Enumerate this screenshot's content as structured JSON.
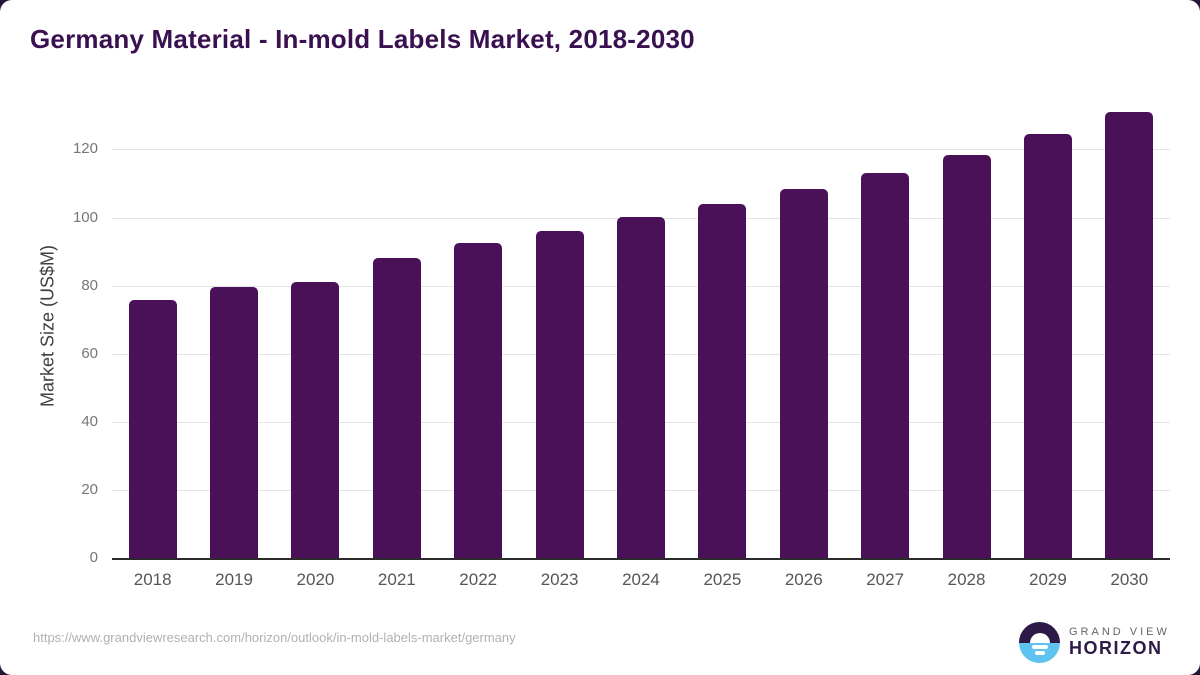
{
  "chart_data": {
    "type": "bar",
    "title": "Germany Material - In-mold Labels Market, 2018-2030",
    "xlabel": "",
    "ylabel": "Market Size (US$M)",
    "categories": [
      "2018",
      "2019",
      "2020",
      "2021",
      "2022",
      "2023",
      "2024",
      "2025",
      "2026",
      "2027",
      "2028",
      "2029",
      "2030"
    ],
    "values": [
      75.9,
      79.6,
      81.2,
      88.0,
      92.4,
      96.2,
      100.3,
      104.1,
      108.5,
      113.1,
      118.4,
      124.6,
      131.0
    ],
    "yticks": [
      0,
      20,
      40,
      60,
      80,
      100,
      120
    ],
    "ylim": [
      0,
      136
    ],
    "grid": "horizontal",
    "legend": "none"
  },
  "theme": {
    "title_color": "#3a1150",
    "bar_color": "#4a1158",
    "grid_color": "#e4e4e4",
    "axis_line_color": "#2b2b2b",
    "tick_label_color": "#767676",
    "x_label_color": "#565656",
    "url_color": "#b1b1b1",
    "logo_purple": "#2e1a47",
    "logo_blue": "#5ec3ef",
    "logo_gray": "#63636f",
    "corner_bg": "#241535"
  },
  "footer": {
    "source_url": "https://www.grandviewresearch.com/horizon/outlook/in-mold-labels-market/germany",
    "logo": {
      "line1": "GRAND VIEW",
      "line2": "HORIZON"
    }
  }
}
